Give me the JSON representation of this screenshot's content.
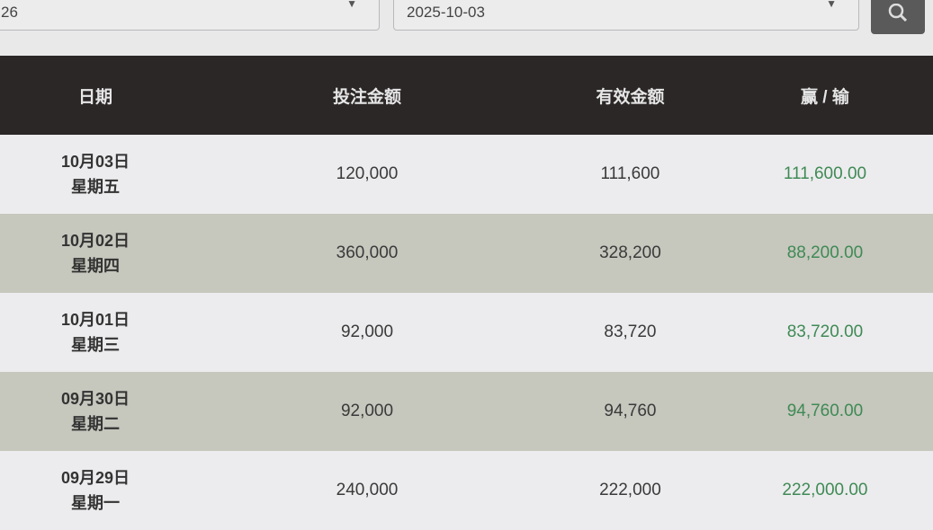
{
  "filters": {
    "start_date": "26",
    "end_date": "2025-10-03",
    "search_icon": "search-icon",
    "dropdown_icon": "chevron-down-icon"
  },
  "table": {
    "headers": [
      "日期",
      "投注金额",
      "有效金额",
      "赢 / 输"
    ],
    "rows": [
      {
        "date": "10月03日",
        "weekday": "星期五",
        "bet": "120,000",
        "valid": "111,600",
        "win_loss": "111,600.00"
      },
      {
        "date": "10月02日",
        "weekday": "星期四",
        "bet": "360,000",
        "valid": "328,200",
        "win_loss": "88,200.00"
      },
      {
        "date": "10月01日",
        "weekday": "星期三",
        "bet": "92,000",
        "valid": "83,720",
        "win_loss": "83,720.00"
      },
      {
        "date": "09月30日",
        "weekday": "星期二",
        "bet": "92,000",
        "valid": "94,760",
        "win_loss": "94,760.00"
      },
      {
        "date": "09月29日",
        "weekday": "星期一",
        "bet": "240,000",
        "valid": "222,000",
        "win_loss": "222,000.00"
      }
    ]
  },
  "colors": {
    "header_bg": "#2b2726",
    "win": "#3f8a55",
    "row_alt": "#c6c7bd"
  }
}
